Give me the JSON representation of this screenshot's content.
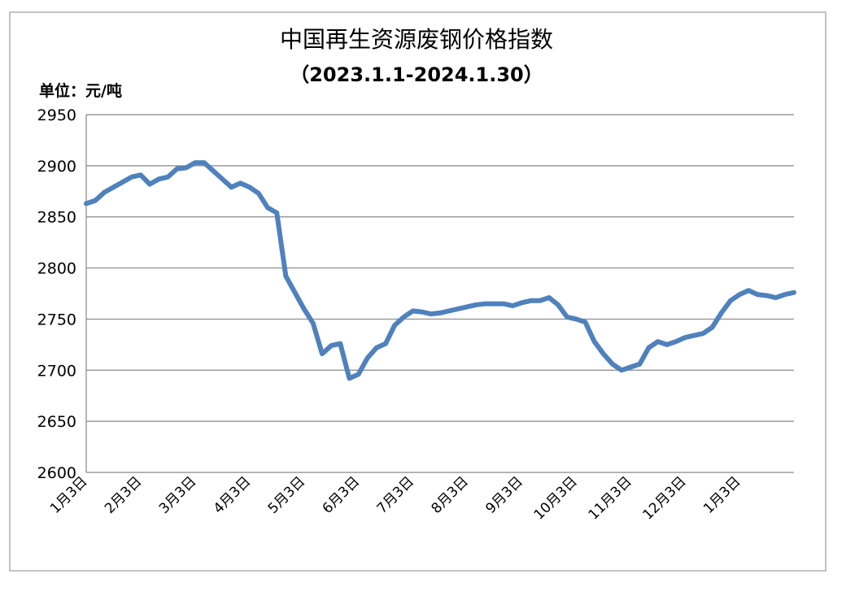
{
  "chart_data": {
    "type": "line",
    "title": "中国再生资源废钢价格指数",
    "subtitle": "（2023.1.1-2024.1.30）",
    "y_axis_label": "单位：元/吨",
    "categories": [
      "1月3日",
      null,
      null,
      null,
      null,
      null,
      "2月3日",
      null,
      null,
      null,
      null,
      null,
      "3月3日",
      null,
      null,
      null,
      null,
      null,
      "4月3日",
      null,
      null,
      null,
      null,
      null,
      "5月3日",
      null,
      null,
      null,
      null,
      null,
      "6月3日",
      null,
      null,
      null,
      null,
      null,
      "7月3日",
      null,
      null,
      null,
      null,
      null,
      "8月3日",
      null,
      null,
      null,
      null,
      null,
      "9月3日",
      null,
      null,
      null,
      null,
      null,
      "10月3日",
      null,
      null,
      null,
      null,
      null,
      "11月3日",
      null,
      null,
      null,
      null,
      null,
      "12月3日",
      null,
      null,
      null,
      null,
      null,
      "1月3日",
      null,
      null,
      null,
      null,
      null,
      null
    ],
    "series": [
      {
        "name": "废钢价格指数",
        "color": "#4f81bd",
        "values": [
          2863,
          2866,
          2874,
          2879,
          2884,
          2889,
          2891,
          2882,
          2887,
          2889,
          2897,
          2898,
          2903,
          2903,
          2895,
          2887,
          2879,
          2883,
          2879,
          2873,
          2859,
          2854,
          2792,
          2776,
          2760,
          2746,
          2716,
          2724,
          2726,
          2692,
          2696,
          2712,
          2722,
          2726,
          2744,
          2752,
          2758,
          2757,
          2755,
          2756,
          2758,
          2760,
          2762,
          2764,
          2765,
          2765,
          2765,
          2763,
          2766,
          2768,
          2768,
          2771,
          2764,
          2752,
          2750,
          2747,
          2728,
          2716,
          2706,
          2700,
          2703,
          2706,
          2722,
          2728,
          2725,
          2728,
          2732,
          2734,
          2736,
          2742,
          2756,
          2768,
          2774,
          2778,
          2774,
          2773,
          2771,
          2774,
          2776
        ]
      }
    ],
    "ylim": [
      2600,
      2950
    ],
    "yticks": [
      2600,
      2650,
      2700,
      2750,
      2800,
      2850,
      2900,
      2950
    ],
    "grid": true
  }
}
